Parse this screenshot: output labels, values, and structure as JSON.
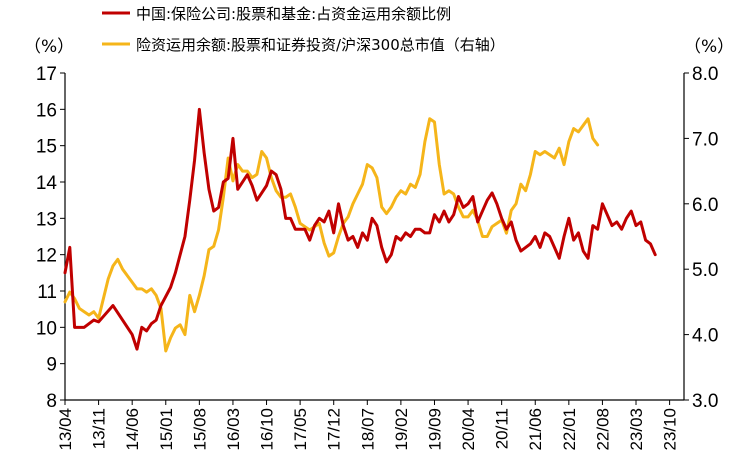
{
  "chart_data": {
    "type": "line",
    "title": "",
    "y_unit_left": "（%）",
    "y_unit_right": "（%）",
    "ylim_left": [
      8,
      17
    ],
    "ylim_right": [
      3.0,
      8.0
    ],
    "yticks_left": [
      "8",
      "9",
      "10",
      "11",
      "12",
      "13",
      "14",
      "15",
      "16",
      "17"
    ],
    "yticks_right": [
      "3.0",
      "4.0",
      "5.0",
      "6.0",
      "7.0",
      "8.0"
    ],
    "x_tick_labels": [
      "13/04",
      "13/11",
      "14/06",
      "15/01",
      "15/08",
      "16/03",
      "16/10",
      "17/05",
      "17/12",
      "18/07",
      "19/02",
      "19/09",
      "20/04",
      "20/11",
      "21/06",
      "22/01",
      "22/08",
      "23/03",
      "23/10"
    ],
    "x_start": "2013/04",
    "x_end": "2023/12",
    "series": [
      {
        "name": "中国:保险公司:股票和基金:占资金运用余额比例",
        "axis": "left",
        "color": "#C00000",
        "points": [
          [
            0,
            11.5
          ],
          [
            1,
            12.2
          ],
          [
            2,
            10.0
          ],
          [
            4,
            10.0
          ],
          [
            6,
            10.2
          ],
          [
            7,
            10.15
          ],
          [
            8,
            10.3
          ],
          [
            10,
            10.6
          ],
          [
            12,
            10.2
          ],
          [
            14,
            9.8
          ],
          [
            15,
            9.4
          ],
          [
            16,
            10.0
          ],
          [
            17,
            9.9
          ],
          [
            18,
            10.1
          ],
          [
            19,
            10.2
          ],
          [
            20,
            10.6
          ],
          [
            22,
            11.1
          ],
          [
            23,
            11.5
          ],
          [
            24,
            12.0
          ],
          [
            25,
            12.5
          ],
          [
            26,
            13.5
          ],
          [
            27,
            14.6
          ],
          [
            28,
            16.0
          ],
          [
            29,
            14.8
          ],
          [
            30,
            13.8
          ],
          [
            31,
            13.2
          ],
          [
            32,
            13.3
          ],
          [
            33,
            14.0
          ],
          [
            34,
            14.1
          ],
          [
            35,
            15.2
          ],
          [
            36,
            13.8
          ],
          [
            38,
            14.2
          ],
          [
            39,
            13.9
          ],
          [
            40,
            13.5
          ],
          [
            41,
            13.7
          ],
          [
            42,
            13.9
          ],
          [
            43,
            14.3
          ],
          [
            44,
            14.2
          ],
          [
            45,
            13.8
          ],
          [
            46,
            13.0
          ],
          [
            47,
            13.0
          ],
          [
            48,
            12.7
          ],
          [
            50,
            12.7
          ],
          [
            51,
            12.4
          ],
          [
            52,
            12.8
          ],
          [
            53,
            13.0
          ],
          [
            54,
            12.9
          ],
          [
            55,
            13.2
          ],
          [
            56,
            12.6
          ],
          [
            57,
            13.4
          ],
          [
            58,
            12.8
          ],
          [
            59,
            12.4
          ],
          [
            60,
            12.5
          ],
          [
            61,
            12.2
          ],
          [
            62,
            12.6
          ],
          [
            63,
            12.4
          ],
          [
            64,
            13.0
          ],
          [
            65,
            12.8
          ],
          [
            66,
            12.2
          ],
          [
            67,
            11.8
          ],
          [
            68,
            12.0
          ],
          [
            69,
            12.5
          ],
          [
            70,
            12.4
          ],
          [
            71,
            12.6
          ],
          [
            72,
            12.5
          ],
          [
            73,
            12.7
          ],
          [
            74,
            12.7
          ],
          [
            75,
            12.6
          ],
          [
            76,
            12.6
          ],
          [
            77,
            13.1
          ],
          [
            78,
            12.9
          ],
          [
            79,
            13.2
          ],
          [
            80,
            12.9
          ],
          [
            81,
            13.1
          ],
          [
            82,
            13.6
          ],
          [
            83,
            13.3
          ],
          [
            84,
            13.4
          ],
          [
            85,
            13.6
          ],
          [
            86,
            12.9
          ],
          [
            87,
            13.2
          ],
          [
            88,
            13.5
          ],
          [
            89,
            13.7
          ],
          [
            90,
            13.4
          ],
          [
            91,
            13.0
          ],
          [
            92,
            12.7
          ],
          [
            93,
            12.9
          ],
          [
            94,
            12.4
          ],
          [
            95,
            12.1
          ],
          [
            96,
            12.2
          ],
          [
            97,
            12.3
          ],
          [
            98,
            12.5
          ],
          [
            99,
            12.2
          ],
          [
            100,
            12.6
          ],
          [
            101,
            12.5
          ],
          [
            102,
            12.2
          ],
          [
            103,
            11.9
          ],
          [
            104,
            12.5
          ],
          [
            105,
            13.0
          ],
          [
            106,
            12.4
          ],
          [
            107,
            12.6
          ],
          [
            108,
            12.1
          ],
          [
            109,
            11.9
          ],
          [
            110,
            12.8
          ],
          [
            111,
            12.7
          ],
          [
            112,
            13.4
          ],
          [
            113,
            13.1
          ],
          [
            114,
            12.8
          ],
          [
            115,
            12.9
          ],
          [
            116,
            12.7
          ],
          [
            117,
            13.0
          ],
          [
            118,
            13.2
          ],
          [
            119,
            12.8
          ],
          [
            120,
            12.9
          ],
          [
            121,
            12.4
          ],
          [
            122,
            12.3
          ],
          [
            123,
            12.0
          ]
        ]
      },
      {
        "name": "险资运用余额:股票和证券投资/沪深300总市值（右轴）",
        "axis": "right",
        "color": "#F5B51A",
        "points": [
          [
            0,
            4.5
          ],
          [
            1,
            4.65
          ],
          [
            2,
            4.55
          ],
          [
            3,
            4.4
          ],
          [
            4,
            4.35
          ],
          [
            5,
            4.3
          ],
          [
            6,
            4.35
          ],
          [
            7,
            4.25
          ],
          [
            8,
            4.55
          ],
          [
            9,
            4.85
          ],
          [
            10,
            5.05
          ],
          [
            11,
            5.15
          ],
          [
            12,
            5.0
          ],
          [
            13,
            4.9
          ],
          [
            14,
            4.8
          ],
          [
            15,
            4.7
          ],
          [
            16,
            4.7
          ],
          [
            17,
            4.65
          ],
          [
            18,
            4.7
          ],
          [
            19,
            4.6
          ],
          [
            20,
            4.4
          ],
          [
            21,
            3.75
          ],
          [
            22,
            3.95
          ],
          [
            23,
            4.1
          ],
          [
            24,
            4.15
          ],
          [
            25,
            4.0
          ],
          [
            26,
            4.6
          ],
          [
            27,
            4.35
          ],
          [
            28,
            4.6
          ],
          [
            29,
            4.9
          ],
          [
            30,
            5.3
          ],
          [
            31,
            5.35
          ],
          [
            32,
            5.6
          ],
          [
            33,
            6.1
          ],
          [
            34,
            6.7
          ],
          [
            35,
            6.35
          ],
          [
            36,
            6.6
          ],
          [
            37,
            6.5
          ],
          [
            38,
            6.5
          ],
          [
            39,
            6.4
          ],
          [
            40,
            6.45
          ],
          [
            41,
            6.8
          ],
          [
            42,
            6.7
          ],
          [
            43,
            6.4
          ],
          [
            44,
            6.2
          ],
          [
            45,
            6.1
          ],
          [
            46,
            6.1
          ],
          [
            47,
            6.15
          ],
          [
            48,
            5.95
          ],
          [
            49,
            5.7
          ],
          [
            50,
            5.65
          ],
          [
            51,
            5.6
          ],
          [
            52,
            5.65
          ],
          [
            53,
            5.7
          ],
          [
            54,
            5.4
          ],
          [
            55,
            5.2
          ],
          [
            56,
            5.25
          ],
          [
            57,
            5.5
          ],
          [
            58,
            5.7
          ],
          [
            59,
            5.8
          ],
          [
            60,
            6.0
          ],
          [
            61,
            6.15
          ],
          [
            62,
            6.3
          ],
          [
            63,
            6.6
          ],
          [
            64,
            6.55
          ],
          [
            65,
            6.4
          ],
          [
            66,
            5.95
          ],
          [
            67,
            5.85
          ],
          [
            68,
            5.95
          ],
          [
            69,
            6.1
          ],
          [
            70,
            6.2
          ],
          [
            71,
            6.15
          ],
          [
            72,
            6.3
          ],
          [
            73,
            6.25
          ],
          [
            74,
            6.45
          ],
          [
            75,
            6.95
          ],
          [
            76,
            7.3
          ],
          [
            77,
            7.25
          ],
          [
            78,
            6.6
          ],
          [
            79,
            6.15
          ],
          [
            80,
            6.2
          ],
          [
            81,
            6.15
          ],
          [
            82,
            5.95
          ],
          [
            83,
            5.8
          ],
          [
            84,
            5.8
          ],
          [
            85,
            5.9
          ],
          [
            86,
            5.75
          ],
          [
            87,
            5.5
          ],
          [
            88,
            5.5
          ],
          [
            89,
            5.65
          ],
          [
            90,
            5.7
          ],
          [
            91,
            5.75
          ],
          [
            92,
            5.55
          ],
          [
            93,
            5.9
          ],
          [
            94,
            6.0
          ],
          [
            95,
            6.3
          ],
          [
            96,
            6.2
          ],
          [
            97,
            6.45
          ],
          [
            98,
            6.8
          ],
          [
            99,
            6.75
          ],
          [
            100,
            6.8
          ],
          [
            101,
            6.75
          ],
          [
            102,
            6.7
          ],
          [
            103,
            6.85
          ],
          [
            104,
            6.6
          ],
          [
            105,
            6.95
          ],
          [
            106,
            7.15
          ],
          [
            107,
            7.1
          ],
          [
            108,
            7.2
          ],
          [
            109,
            7.3
          ],
          [
            110,
            7.0
          ],
          [
            111,
            6.9
          ]
        ]
      }
    ]
  }
}
